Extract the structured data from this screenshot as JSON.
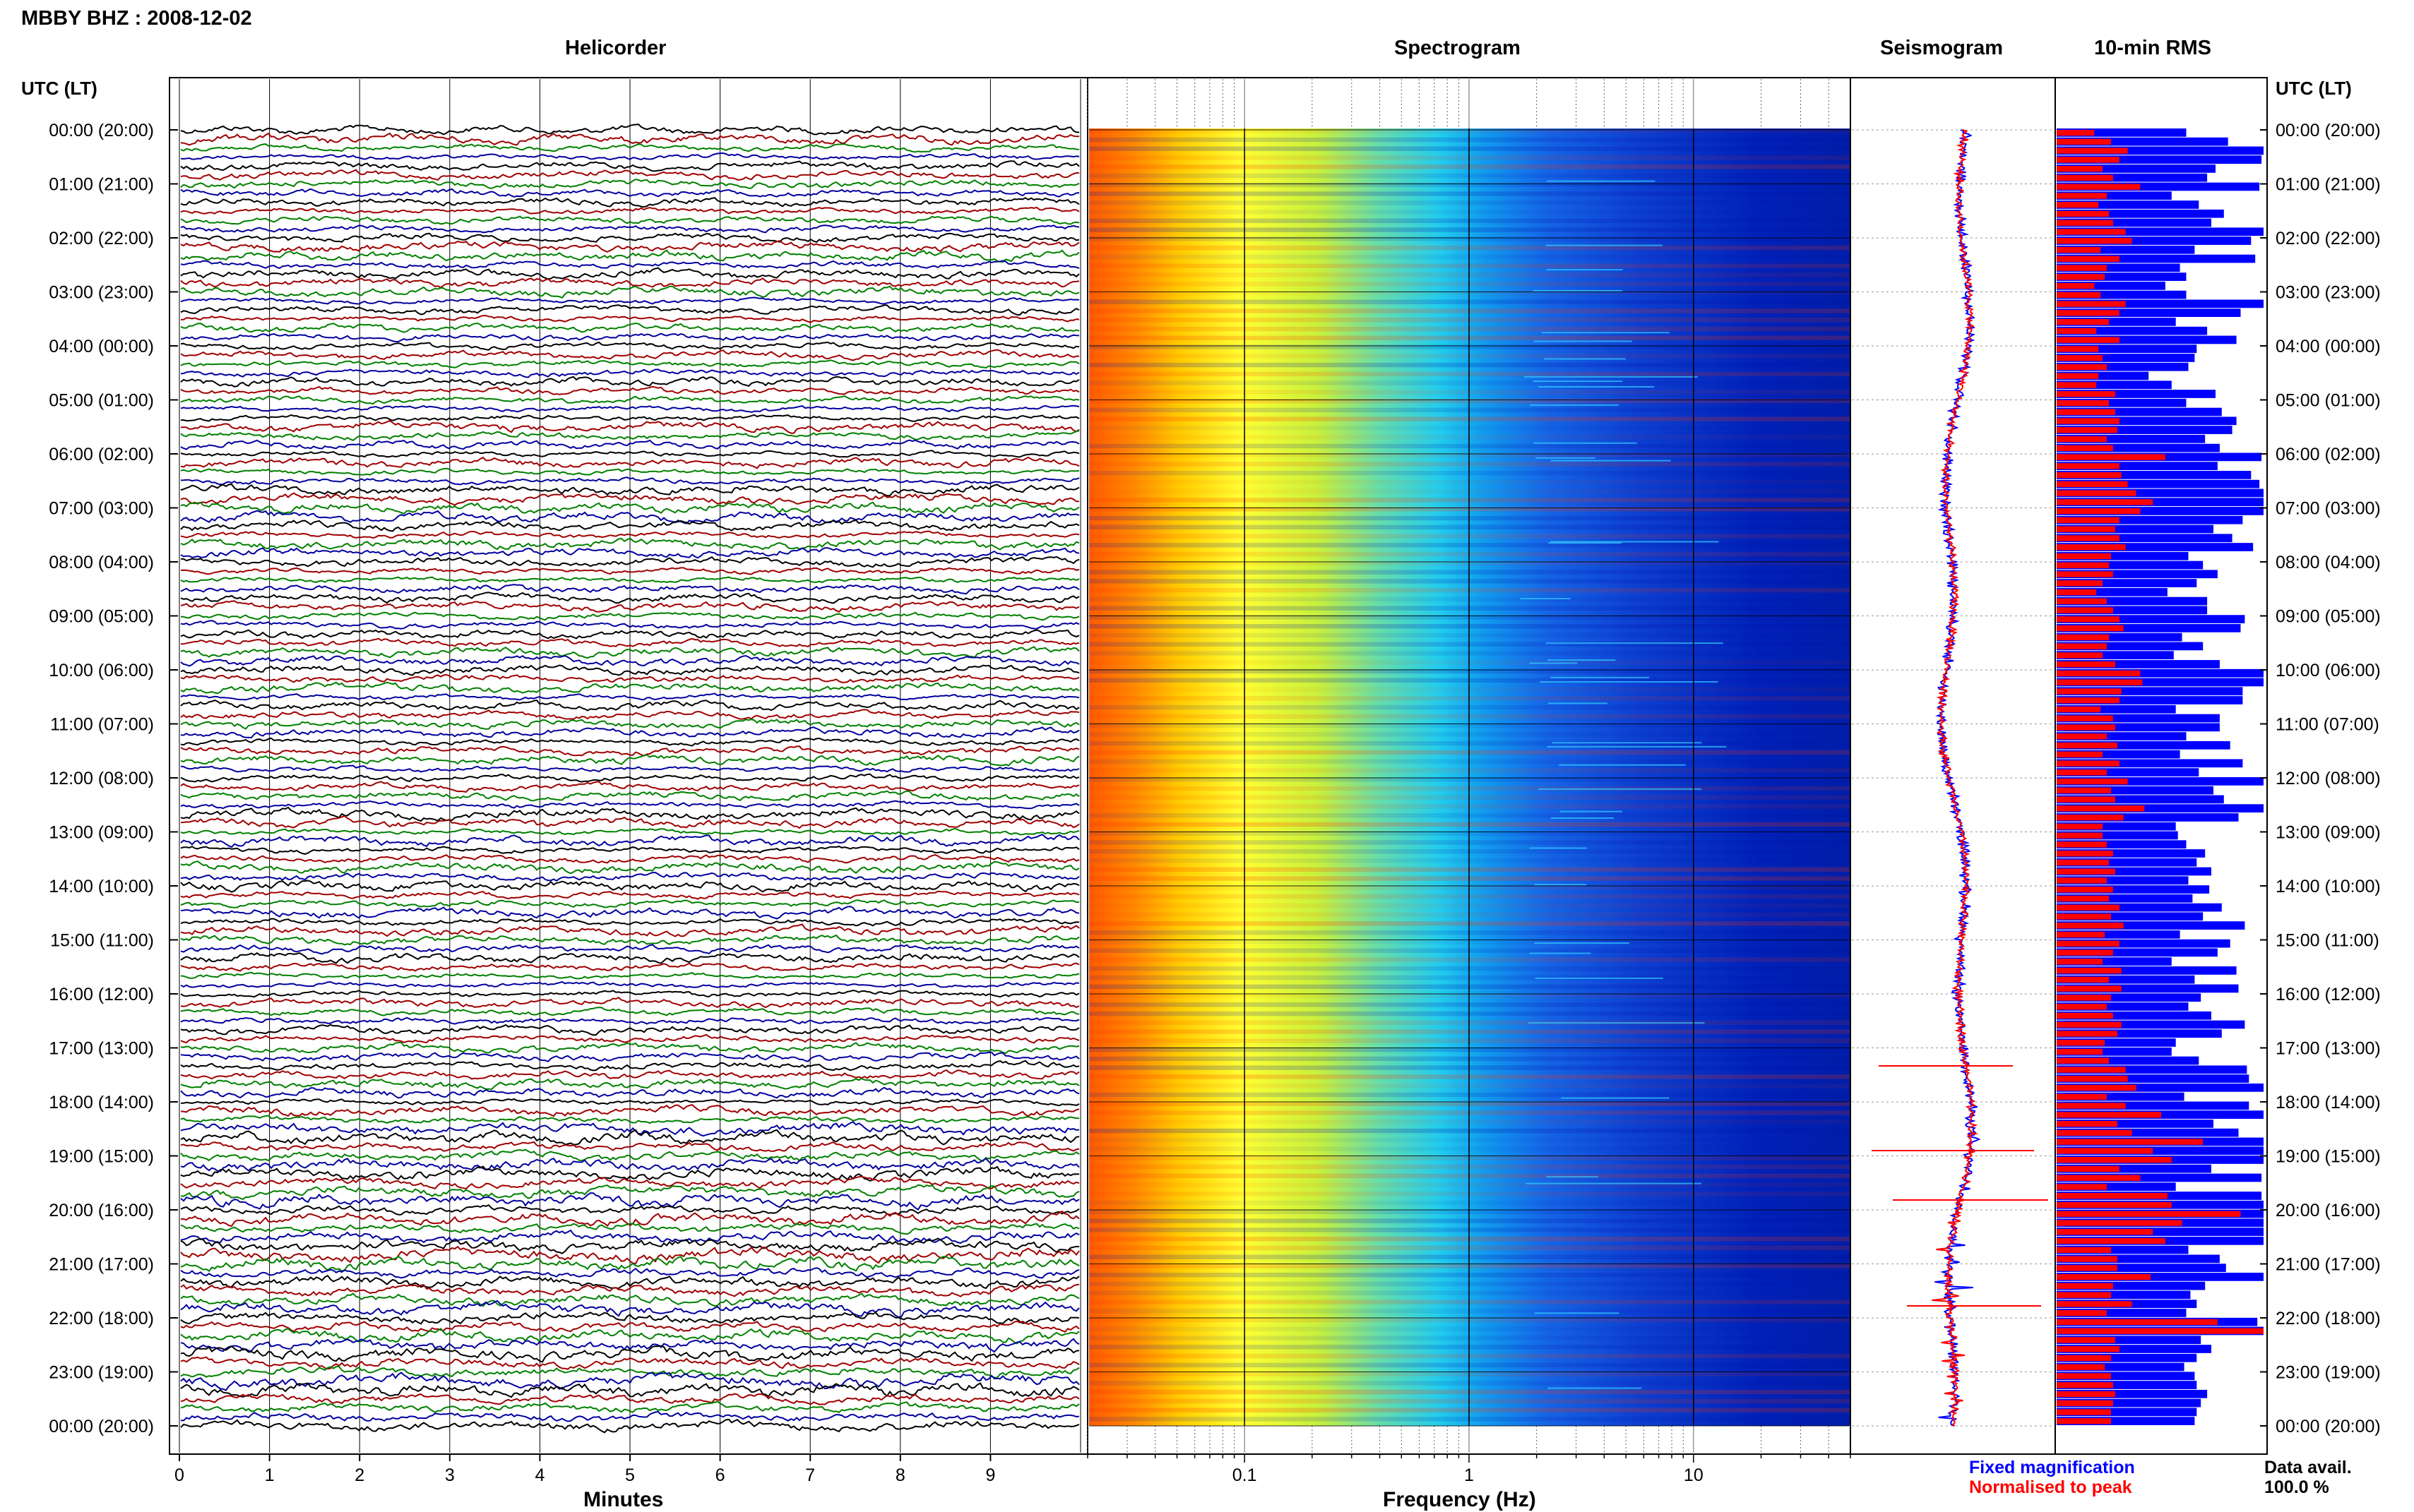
{
  "header": {
    "station_title": "MBBY BHZ : 2008-12-02"
  },
  "panels": {
    "helicorder": {
      "title": "Helicorder",
      "xlabel": "Minutes"
    },
    "spectrogram": {
      "title": "Spectrogram",
      "xlabel": "Frequency (Hz)"
    },
    "seismogram": {
      "title": "Seismogram"
    },
    "rms": {
      "title": "10-min RMS"
    }
  },
  "time_axis": {
    "left_header": "UTC (LT)",
    "right_header": "UTC (LT)",
    "labels": [
      "00:00 (20:00)",
      "01:00 (21:00)",
      "02:00 (22:00)",
      "03:00 (23:00)",
      "04:00 (00:00)",
      "05:00 (01:00)",
      "06:00 (02:00)",
      "07:00 (03:00)",
      "08:00 (04:00)",
      "09:00 (05:00)",
      "10:00 (06:00)",
      "11:00 (07:00)",
      "12:00 (08:00)",
      "13:00 (09:00)",
      "14:00 (10:00)",
      "15:00 (11:00)",
      "16:00 (12:00)",
      "17:00 (13:00)",
      "18:00 (14:00)",
      "19:00 (15:00)",
      "20:00 (16:00)",
      "21:00 (17:00)",
      "22:00 (18:00)",
      "23:00 (19:00)",
      "00:00 (20:00)"
    ]
  },
  "legend": {
    "fixed_label": "Fixed magnification",
    "fixed_color": "#0000ff",
    "normalised_label": "Normalised to peak",
    "normalised_color": "#ff0000",
    "avail_title": "Data avail.",
    "avail_value": "100.0 %"
  },
  "chart_data": [
    {
      "type": "line",
      "panel": "helicorder",
      "title": "Helicorder",
      "xlabel": "Minutes",
      "x_ticks": [
        "0",
        "1",
        "2",
        "3",
        "4",
        "5",
        "6",
        "7",
        "8",
        "9"
      ],
      "xlim": [
        0,
        10
      ],
      "traces_per_hour": 6,
      "trace_colors": [
        "#000000",
        "#a00000",
        "#008000",
        "#0000a0"
      ],
      "grid": true
    },
    {
      "type": "heatmap",
      "panel": "spectrogram",
      "title": "Spectrogram",
      "xlabel": "Frequency (Hz)",
      "x_scale": "log",
      "xlim": [
        0.02,
        50
      ],
      "x_ticks": [
        "0.1",
        "1",
        "10"
      ],
      "colormap": [
        "#0000aa",
        "#0055ff",
        "#00ccff",
        "#ccee00",
        "#ffdd00",
        "#ff6600"
      ]
    },
    {
      "type": "line",
      "panel": "seismogram",
      "title": "Seismogram",
      "series": [
        {
          "name": "Fixed magnification",
          "color": "#0000ff"
        },
        {
          "name": "Normalised to peak",
          "color": "#ff0000"
        }
      ]
    },
    {
      "type": "bar",
      "panel": "rms",
      "title": "10-min RMS",
      "series": [
        {
          "name": "Fixed magnification",
          "color": "#0000ff",
          "values": [
            0.62,
            0.82,
            0.99,
            0.98,
            0.76,
            0.72,
            0.97,
            0.55,
            0.68,
            0.8,
            0.74,
            0.99,
            0.93,
            0.66,
            0.95,
            0.59,
            0.62,
            0.52,
            0.62,
            0.99,
            0.88,
            0.57,
            0.72,
            0.86,
            0.67,
            0.66,
            0.63,
            0.44,
            0.55,
            0.76,
            0.62,
            0.79,
            0.86,
            0.84,
            0.71,
            0.78,
            0.98,
            0.77,
            0.93,
            0.97,
            0.99,
            0.99,
            0.99,
            0.89,
            0.75,
            0.84,
            0.94,
            0.63,
            0.7,
            0.77,
            0.67,
            0.53,
            0.72,
            0.72,
            0.9,
            0.88,
            0.6,
            0.7,
            0.56,
            0.78,
            0.99,
            0.99,
            0.89,
            0.89,
            0.57,
            0.78,
            0.78,
            0.62,
            0.83,
            0.59,
            0.89,
            0.68,
            0.99,
            0.75,
            0.8,
            0.99,
            0.87,
            0.57,
            0.58,
            0.62,
            0.71,
            0.67,
            0.74,
            0.63,
            0.73,
            0.65,
            0.79,
            0.7,
            0.9,
            0.59,
            0.83,
            0.77,
            0.55,
            0.86,
            0.66,
            0.87,
            0.69,
            0.63,
            0.74,
            0.9,
            0.79,
            0.57,
            0.55,
            0.68,
            0.91,
            0.92,
            0.99,
            0.61,
            0.92,
            0.99,
            0.75,
            0.87,
            0.99,
            0.99,
            0.99,
            0.74,
            0.98,
            0.57,
            0.98,
            0.99,
            0.99,
            0.99,
            0.99,
            0.99,
            0.63,
            0.78,
            0.81,
            0.99,
            0.71,
            0.64,
            0.67,
            0.62,
            0.96,
            0.99,
            0.69,
            0.74,
            0.67,
            0.61,
            0.66,
            0.67,
            0.72,
            0.69,
            0.67,
            0.66
          ]
        },
        {
          "name": "Normalised to peak",
          "color": "#ff0000",
          "values": [
            0.18,
            0.26,
            0.34,
            0.3,
            0.22,
            0.27,
            0.4,
            0.24,
            0.2,
            0.25,
            0.27,
            0.33,
            0.36,
            0.21,
            0.3,
            0.24,
            0.23,
            0.18,
            0.21,
            0.33,
            0.3,
            0.25,
            0.19,
            0.3,
            0.2,
            0.22,
            0.24,
            0.2,
            0.19,
            0.28,
            0.25,
            0.28,
            0.3,
            0.29,
            0.24,
            0.27,
            0.52,
            0.3,
            0.31,
            0.34,
            0.38,
            0.46,
            0.4,
            0.3,
            0.28,
            0.3,
            0.33,
            0.26,
            0.25,
            0.27,
            0.22,
            0.19,
            0.24,
            0.27,
            0.3,
            0.32,
            0.25,
            0.24,
            0.22,
            0.28,
            0.4,
            0.41,
            0.31,
            0.3,
            0.21,
            0.27,
            0.28,
            0.24,
            0.29,
            0.22,
            0.3,
            0.24,
            0.34,
            0.26,
            0.28,
            0.42,
            0.32,
            0.22,
            0.22,
            0.24,
            0.27,
            0.25,
            0.28,
            0.24,
            0.27,
            0.25,
            0.3,
            0.26,
            0.32,
            0.23,
            0.3,
            0.27,
            0.22,
            0.31,
            0.25,
            0.31,
            0.26,
            0.24,
            0.27,
            0.31,
            0.29,
            0.23,
            0.22,
            0.25,
            0.33,
            0.34,
            0.38,
            0.24,
            0.33,
            0.5,
            0.29,
            0.36,
            0.7,
            0.46,
            0.55,
            0.3,
            0.4,
            0.24,
            0.53,
            0.55,
            0.88,
            0.6,
            0.46,
            0.52,
            0.26,
            0.29,
            0.29,
            0.45,
            0.27,
            0.26,
            0.36,
            0.24,
            0.77,
            0.99,
            0.28,
            0.3,
            0.26,
            0.23,
            0.26,
            0.27,
            0.28,
            0.27,
            0.26,
            0.26
          ]
        }
      ]
    }
  ]
}
